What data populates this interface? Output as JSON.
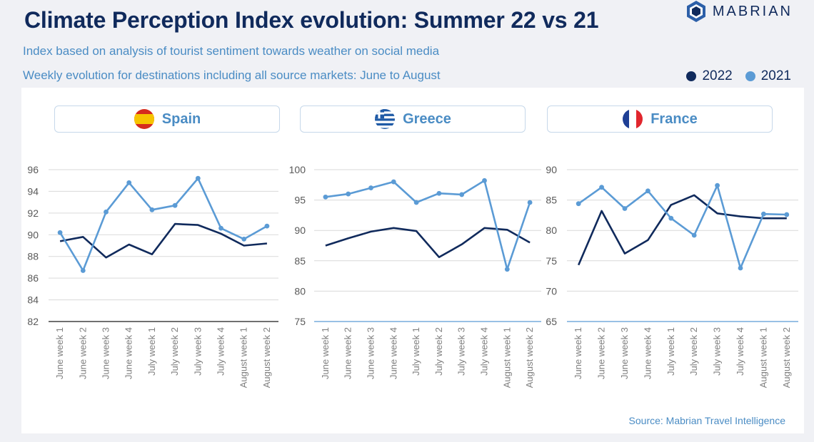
{
  "header": {
    "title": "Climate Perception Index evolution: Summer 22 vs 21",
    "subtitle1": "Index based on analysis of tourist sentiment towards weather on social media",
    "subtitle2": "Weekly evolution for destinations including all source markets: June to August"
  },
  "logo": {
    "text": "MABRIAN"
  },
  "legend": [
    {
      "label": "2022",
      "color": "#102a5c"
    },
    {
      "label": "2021",
      "color": "#5b9bd5"
    }
  ],
  "source": "Source: Mabrian Travel Intelligence",
  "chart_data": [
    {
      "type": "line",
      "title": "Spain",
      "categories": [
        "June week 1",
        "June week 2",
        "June week 3",
        "June week 4",
        "July week 1",
        "July week 2",
        "July week 3",
        "July week 4",
        "August week 1",
        "August week 2"
      ],
      "series": [
        {
          "name": "2022",
          "values": [
            89.4,
            89.8,
            87.9,
            89.1,
            88.2,
            91.0,
            90.9,
            90.1,
            89.0,
            89.2
          ]
        },
        {
          "name": "2021",
          "values": [
            90.2,
            86.7,
            92.1,
            94.8,
            92.3,
            92.7,
            95.2,
            90.6,
            89.6,
            90.8
          ]
        }
      ],
      "ylim": [
        82,
        96
      ],
      "yticks": [
        82,
        84,
        86,
        88,
        90,
        92,
        94,
        96
      ]
    },
    {
      "type": "line",
      "title": "Greece",
      "categories": [
        "June week 1",
        "June week 2",
        "June week 3",
        "June week 4",
        "July week 1",
        "July week 2",
        "July week 3",
        "July week 4",
        "August week 1",
        "August week 2"
      ],
      "series": [
        {
          "name": "2022",
          "values": [
            87.5,
            88.7,
            89.8,
            90.4,
            89.9,
            85.6,
            87.7,
            90.4,
            90.1,
            88.0
          ]
        },
        {
          "name": "2021",
          "values": [
            95.5,
            96.0,
            97.0,
            98.0,
            94.6,
            96.1,
            95.9,
            98.2,
            83.6,
            94.6
          ]
        }
      ],
      "ylim": [
        75,
        100
      ],
      "yticks": [
        75,
        80,
        85,
        90,
        95,
        100
      ]
    },
    {
      "type": "line",
      "title": "France",
      "categories": [
        "June week 1",
        "June week 2",
        "June week 3",
        "June week 4",
        "July week 1",
        "July week 2",
        "July week 3",
        "July week 4",
        "August week 1",
        "August week 2"
      ],
      "series": [
        {
          "name": "2022",
          "values": [
            74.3,
            83.2,
            76.2,
            78.4,
            84.2,
            85.8,
            82.8,
            82.3,
            82.0,
            82.0
          ]
        },
        {
          "name": "2021",
          "values": [
            84.4,
            87.1,
            83.6,
            86.5,
            82.0,
            79.2,
            87.4,
            73.8,
            82.7,
            82.6
          ]
        }
      ],
      "ylim": [
        65,
        90
      ],
      "yticks": [
        65,
        70,
        75,
        80,
        85,
        90
      ]
    }
  ]
}
